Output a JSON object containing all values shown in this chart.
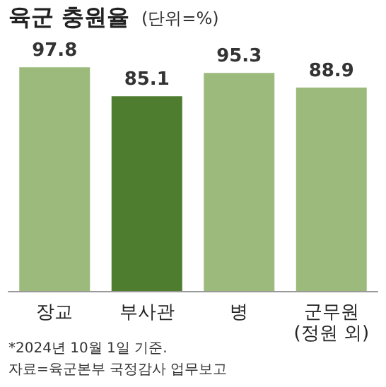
{
  "chart_data": {
    "type": "bar",
    "title": "육군 충원율",
    "subtitle": "(단위=%)",
    "categories": [
      "장교",
      "부사관",
      "병",
      "군무원\n(정원 외)"
    ],
    "values": [
      97.8,
      85.1,
      95.3,
      88.9
    ],
    "colors": [
      "#9cba7c",
      "#4f7d30",
      "#9cba7c",
      "#9cba7c"
    ],
    "tick_labels": "x",
    "data_labels": true,
    "annotations": [
      "*2024년 10월 1일 기준.",
      "자료=육군본부 국정감사 업무보고"
    ]
  }
}
